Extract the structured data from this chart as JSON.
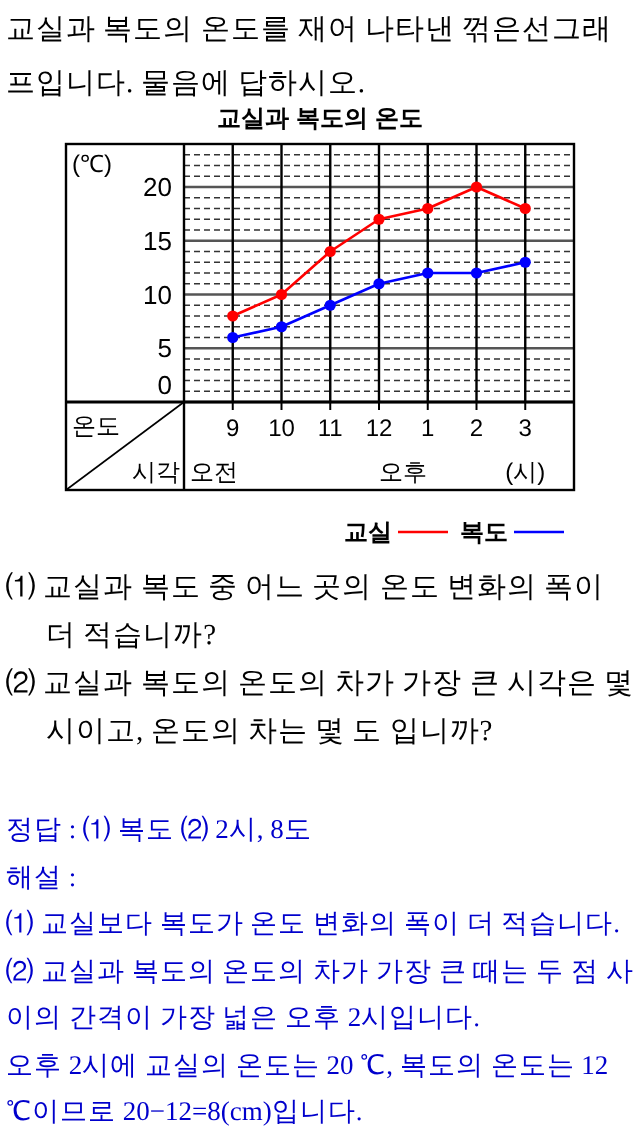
{
  "chart_data": [
    {
      "type": "other",
      "annotations": [
        "교실과 복도의 온도를 재어 나타낸 꺾은선그래프입니다. 물음에 답하시오."
      ]
    },
    {
      "type": "line",
      "title": "교실과 복도의 온도",
      "ylabel": "(℃)",
      "xlabel": "(시)",
      "categories": [
        "9",
        "10",
        "11",
        "12",
        "1",
        "2",
        "3"
      ],
      "ylim": [
        0,
        24
      ],
      "yticks": [
        0,
        {
          "value": 1,
          "label": null
        },
        {
          "value": 2,
          "label": null
        },
        {
          "value": 3,
          "label": null
        },
        {
          "value": 4,
          "label": null
        },
        5,
        {
          "value": 6,
          "label": null
        },
        {
          "value": 7,
          "label": null
        },
        {
          "value": 8,
          "label": null
        },
        {
          "value": 9,
          "label": null
        },
        10,
        {
          "value": 11,
          "label": null
        },
        {
          "value": 12,
          "label": null
        },
        {
          "value": 13,
          "label": null
        },
        {
          "value": 14,
          "label": null
        },
        15,
        {
          "value": 16,
          "label": null
        },
        {
          "value": 17,
          "label": null
        },
        {
          "value": 18,
          "label": null
        },
        {
          "value": 19,
          "label": null
        },
        20,
        {
          "value": 21,
          "label": null
        },
        {
          "value": 22,
          "label": null
        },
        {
          "value": 23,
          "label": null
        }
      ],
      "grid": true,
      "legend": "bottom right",
      "marker": "circle",
      "line_style": "solid",
      "annotations": [
        "온도",
        "시각",
        "오전",
        "오후"
      ],
      "series": [
        {
          "name": "교실",
          "color": "#ff0000",
          "values": [
            8,
            10,
            14,
            17,
            18,
            20,
            18
          ]
        },
        {
          "name": "복도",
          "color": "#0000ff",
          "values": [
            6,
            7,
            9,
            11,
            12,
            12,
            13
          ]
        }
      ]
    },
    {
      "type": "other",
      "annotations": [
        "⑴ 교실과 복도 중 어느 곳의 온도 변화의 폭이 더 적습니까?",
        "⑵ 교실과 복도의 온도의 차가 가장 큰 시각은 몇 시이고, 온도의 차는 몇 도 입니까?"
      ]
    },
    {
      "type": "other",
      "annotations": [
        "정답 : ⑴ 복도 ⑵ 2시, 8도",
        "해설 :",
        "⑴ 교실보다 복도가 온도 변화의 폭이 더 적습니다.",
        "⑵ 교실과 복도의 온도의 차가 가장 큰 때는 두 점 사이의 간격이 가장 넓은 오후 2시입니다.",
        "오후 2시에 교실의 온도는 20 ℃, 복도의 온도는 12 ℃이므로 20−12=8(cm)입니다."
      ]
    }
  ]
}
